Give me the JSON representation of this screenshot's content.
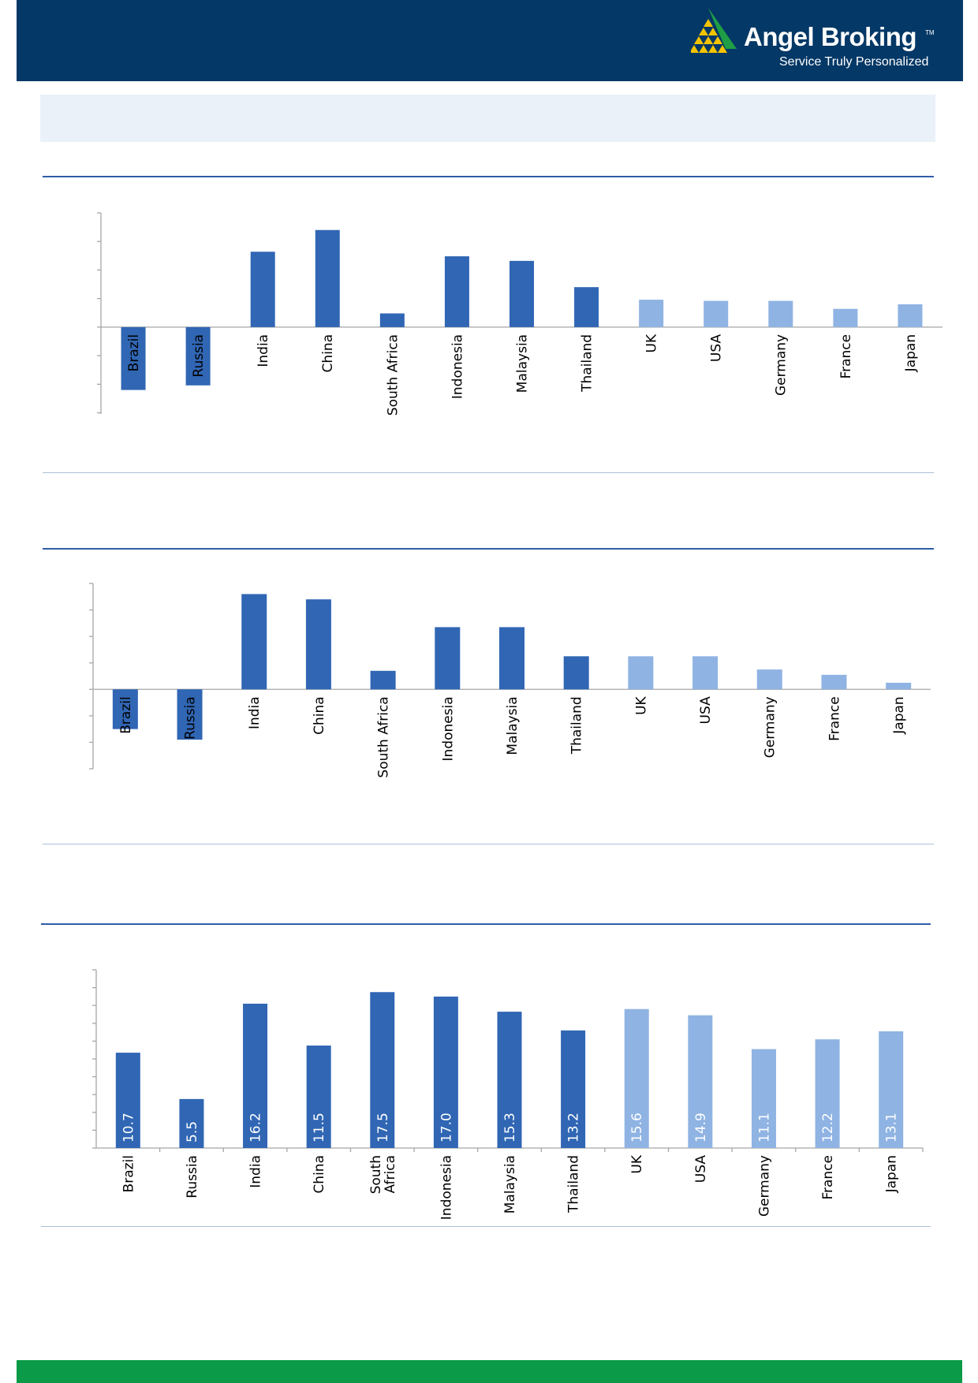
{
  "header": {
    "brand": "Angel Broking",
    "trademark": "TM",
    "tagline": "Service Truly Personalized"
  },
  "colors": {
    "header_bg": "#043866",
    "emerging_bar": "#3066b4",
    "developed_bar": "#8fb3e3",
    "band_bg": "#ebf1f9",
    "footer_bar": "#0a9a48",
    "rule_dark": "#2e5ea6",
    "rule_light": "#a9bfd6"
  },
  "chart_data": [
    {
      "type": "bar",
      "categories": [
        "Brazil",
        "Russia",
        "India",
        "China",
        "South Africa",
        "Indonesia",
        "Malaysia",
        "Thailand",
        "UK",
        "USA",
        "Germany",
        "France",
        "Japan"
      ],
      "values": [
        -5.5,
        -5.1,
        6.6,
        8.5,
        1.2,
        6.2,
        5.8,
        3.5,
        2.4,
        2.3,
        2.3,
        1.6,
        2.0
      ],
      "emerging_count": 8,
      "ylim": [
        -7.6,
        10.0
      ],
      "y_ticks": [
        -7.5,
        -5,
        -2.5,
        0,
        2.5,
        5,
        7.5,
        10
      ],
      "grid": false,
      "labels_inside_negative_bars": true
    },
    {
      "type": "bar",
      "categories": [
        "Brazil",
        "Russia",
        "India",
        "China",
        "South Africa",
        "Indonesia",
        "Malaysia",
        "Thailand",
        "UK",
        "USA",
        "Germany",
        "France",
        "Japan"
      ],
      "values": [
        -3.0,
        -3.8,
        7.2,
        6.8,
        1.4,
        4.7,
        4.7,
        2.5,
        2.5,
        2.5,
        1.5,
        1.1,
        0.5
      ],
      "emerging_count": 8,
      "ylim": [
        -6.0,
        8.0
      ],
      "y_ticks": [
        -6,
        -4,
        -2,
        0,
        2,
        4,
        6,
        8
      ],
      "grid": false,
      "labels_inside_negative_bars": true
    },
    {
      "type": "bar",
      "categories": [
        "Brazil",
        "Russia",
        "India",
        "China",
        "South Africa",
        "Indonesia",
        "Malaysia",
        "Thailand",
        "UK",
        "USA",
        "Germany",
        "France",
        "Japan"
      ],
      "category_lines": [
        [
          "Brazil"
        ],
        [
          "Russia"
        ],
        [
          "India"
        ],
        [
          "China"
        ],
        [
          "South",
          "Africa"
        ],
        [
          "Indonesia"
        ],
        [
          "Malaysia"
        ],
        [
          "Thailand"
        ],
        [
          "UK"
        ],
        [
          "USA"
        ],
        [
          "Germany"
        ],
        [
          "France"
        ],
        [
          "Japan"
        ]
      ],
      "values": [
        10.7,
        5.5,
        16.2,
        11.5,
        17.5,
        17.0,
        15.3,
        13.2,
        15.6,
        14.9,
        11.1,
        12.2,
        13.1
      ],
      "value_labels": [
        "10.7",
        "5.5",
        "16.2",
        "11.5",
        "17.5",
        "17.0",
        "15.3",
        "13.2",
        "15.6",
        "14.9",
        "11.1",
        "12.2",
        "13.1"
      ],
      "emerging_count": 8,
      "ylim": [
        0,
        20
      ],
      "y_ticks": [
        0,
        2,
        4,
        6,
        8,
        10,
        12,
        14,
        16,
        18,
        20
      ],
      "grid": false,
      "data_labels": "inside-bottom-rotated"
    }
  ]
}
